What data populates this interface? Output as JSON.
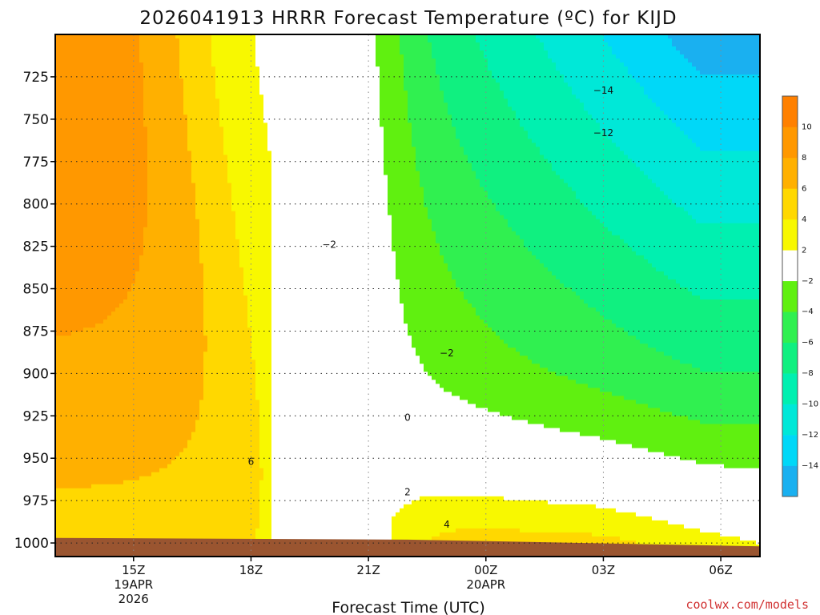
{
  "chart_data": {
    "type": "contour",
    "title": "2026041913 HRRR Forecast Temperature (ºC) for KIJD",
    "xlabel": "Forecast Time (UTC)",
    "ylabel": "",
    "credit": "coolwx.com/models",
    "y_axis": {
      "unit": "hPa",
      "inverted": true,
      "range": [
        700,
        1008
      ],
      "ticks": [
        725,
        750,
        775,
        800,
        825,
        850,
        875,
        900,
        925,
        950,
        975,
        1000
      ],
      "labels": [
        "725",
        "750",
        "775",
        "800",
        "825",
        "850",
        "875",
        "900",
        "925",
        "950",
        "975",
        "1000"
      ]
    },
    "x_axis": {
      "unit": "hours since 2026-04-19 13Z",
      "range": [
        0,
        18
      ],
      "ticks": [
        {
          "hour": 2,
          "label": "15Z",
          "sub1": "19APR",
          "sub2": "2026"
        },
        {
          "hour": 5,
          "label": "18Z",
          "sub1": "",
          "sub2": ""
        },
        {
          "hour": 8,
          "label": "21Z",
          "sub1": "",
          "sub2": ""
        },
        {
          "hour": 11,
          "label": "00Z",
          "sub1": "20APR",
          "sub2": ""
        },
        {
          "hour": 14,
          "label": "03Z",
          "sub1": "",
          "sub2": ""
        },
        {
          "hour": 17,
          "label": "06Z",
          "sub1": "",
          "sub2": ""
        }
      ]
    },
    "grid": true,
    "colorbar": {
      "placement": "right",
      "levels": [
        -16,
        -14,
        -12,
        -10,
        -8,
        -6,
        -4,
        -2,
        2,
        4,
        6,
        8,
        10,
        12
      ],
      "colors": [
        "#1ab0f0",
        "#00d8f8",
        "#00e8d8",
        "#00f0b0",
        "#10f080",
        "#30f050",
        "#60f010",
        "#ffffff",
        "#f8f800",
        "#ffd800",
        "#ffb000",
        "#ff9800",
        "#ff8000"
      ],
      "labels": [
        {
          "value": -14,
          "text": "−14"
        },
        {
          "value": -12,
          "text": "−12"
        },
        {
          "value": -10,
          "text": "−10"
        },
        {
          "value": -8,
          "text": "−8"
        },
        {
          "value": -6,
          "text": "−6"
        },
        {
          "value": -4,
          "text": "−4"
        },
        {
          "value": -2,
          "text": "−2"
        },
        {
          "value": 2,
          "text": "2"
        },
        {
          "value": 4,
          "text": "4"
        },
        {
          "value": 6,
          "text": "6"
        },
        {
          "value": 8,
          "text": "8"
        },
        {
          "value": 10,
          "text": "10"
        }
      ]
    },
    "ground_color": "#9a5530",
    "contour_labels": [
      {
        "text": "−14",
        "hour": 14.0,
        "pres": 733
      },
      {
        "text": "−12",
        "hour": 14.0,
        "pres": 758
      },
      {
        "text": "−2",
        "hour": 7.0,
        "pres": 824
      },
      {
        "text": "−2",
        "hour": 10.0,
        "pres": 888
      },
      {
        "text": "0",
        "hour": 9.0,
        "pres": 926
      },
      {
        "text": "2",
        "hour": 9.0,
        "pres": 970
      },
      {
        "text": "4",
        "hour": 10.0,
        "pres": 989
      },
      {
        "text": "6",
        "hour": 5.0,
        "pres": 952
      }
    ]
  }
}
